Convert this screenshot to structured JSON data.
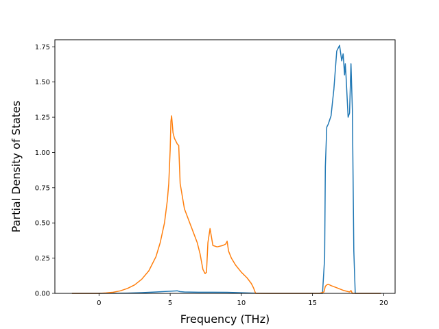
{
  "chart_data": {
    "type": "line",
    "title": "",
    "xlabel": "Frequency (THz)",
    "ylabel": "Partial Density of States",
    "xlim": [
      -3.1,
      20.8
    ],
    "ylim": [
      0,
      1.8
    ],
    "xticks": [
      0,
      5,
      10,
      15,
      20
    ],
    "xtick_labels": [
      "0",
      "5",
      "10",
      "15",
      "20"
    ],
    "yticks": [
      0,
      0.25,
      0.5,
      0.75,
      1.0,
      1.25,
      1.5,
      1.75
    ],
    "ytick_labels": [
      "0.00",
      "0.25",
      "0.50",
      "0.75",
      "1.00",
      "1.25",
      "1.50",
      "1.75"
    ],
    "grid": false,
    "legend": "none",
    "series": [
      {
        "color": "#1f77b4",
        "x": [
          -1.9,
          0,
          2,
          3,
          4,
          5,
          5.5,
          5.7,
          6,
          7,
          8,
          9,
          10,
          11,
          12,
          15.7,
          15.85,
          15.9,
          16.0,
          16.1,
          16.3,
          16.5,
          16.7,
          16.9,
          17.05,
          17.15,
          17.25,
          17.3,
          17.35,
          17.5,
          17.6,
          17.7,
          17.8,
          17.9,
          18.0,
          18.1,
          19.8
        ],
        "y": [
          0,
          0,
          0.002,
          0.005,
          0.01,
          0.015,
          0.018,
          0.012,
          0.01,
          0.008,
          0.008,
          0.007,
          0.004,
          0.001,
          0,
          0,
          0.25,
          0.9,
          1.18,
          1.2,
          1.26,
          1.45,
          1.72,
          1.76,
          1.65,
          1.7,
          1.55,
          1.63,
          1.55,
          1.25,
          1.28,
          1.63,
          1.3,
          0.3,
          0.0,
          0,
          0
        ]
      },
      {
        "color": "#ff7f0e",
        "x": [
          -1.9,
          0,
          0.5,
          1,
          1.5,
          2,
          2.5,
          3,
          3.5,
          4,
          4.3,
          4.6,
          4.8,
          4.9,
          5.0,
          5.05,
          5.1,
          5.2,
          5.3,
          5.5,
          5.6,
          5.7,
          6,
          6.3,
          6.6,
          6.9,
          7.1,
          7.3,
          7.45,
          7.55,
          7.65,
          7.8,
          8,
          8.3,
          8.7,
          8.9,
          9.0,
          9.1,
          9.3,
          9.6,
          10,
          10.4,
          10.7,
          10.85,
          11,
          15.5,
          15.8,
          15.9,
          16.0,
          16.1,
          16.3,
          16.7,
          17.2,
          17.6,
          17.7,
          17.8,
          18.0,
          19.8
        ],
        "y": [
          0,
          0,
          0.003,
          0.008,
          0.018,
          0.035,
          0.06,
          0.1,
          0.16,
          0.26,
          0.36,
          0.5,
          0.66,
          0.78,
          1.02,
          1.22,
          1.26,
          1.14,
          1.1,
          1.06,
          1.05,
          0.78,
          0.6,
          0.52,
          0.44,
          0.36,
          0.28,
          0.17,
          0.14,
          0.15,
          0.36,
          0.46,
          0.34,
          0.33,
          0.34,
          0.35,
          0.37,
          0.3,
          0.25,
          0.2,
          0.15,
          0.11,
          0.07,
          0.04,
          0.0,
          0,
          0.01,
          0.05,
          0.06,
          0.065,
          0.055,
          0.04,
          0.02,
          0.01,
          0.02,
          0.0,
          0.0,
          0
        ]
      }
    ]
  }
}
